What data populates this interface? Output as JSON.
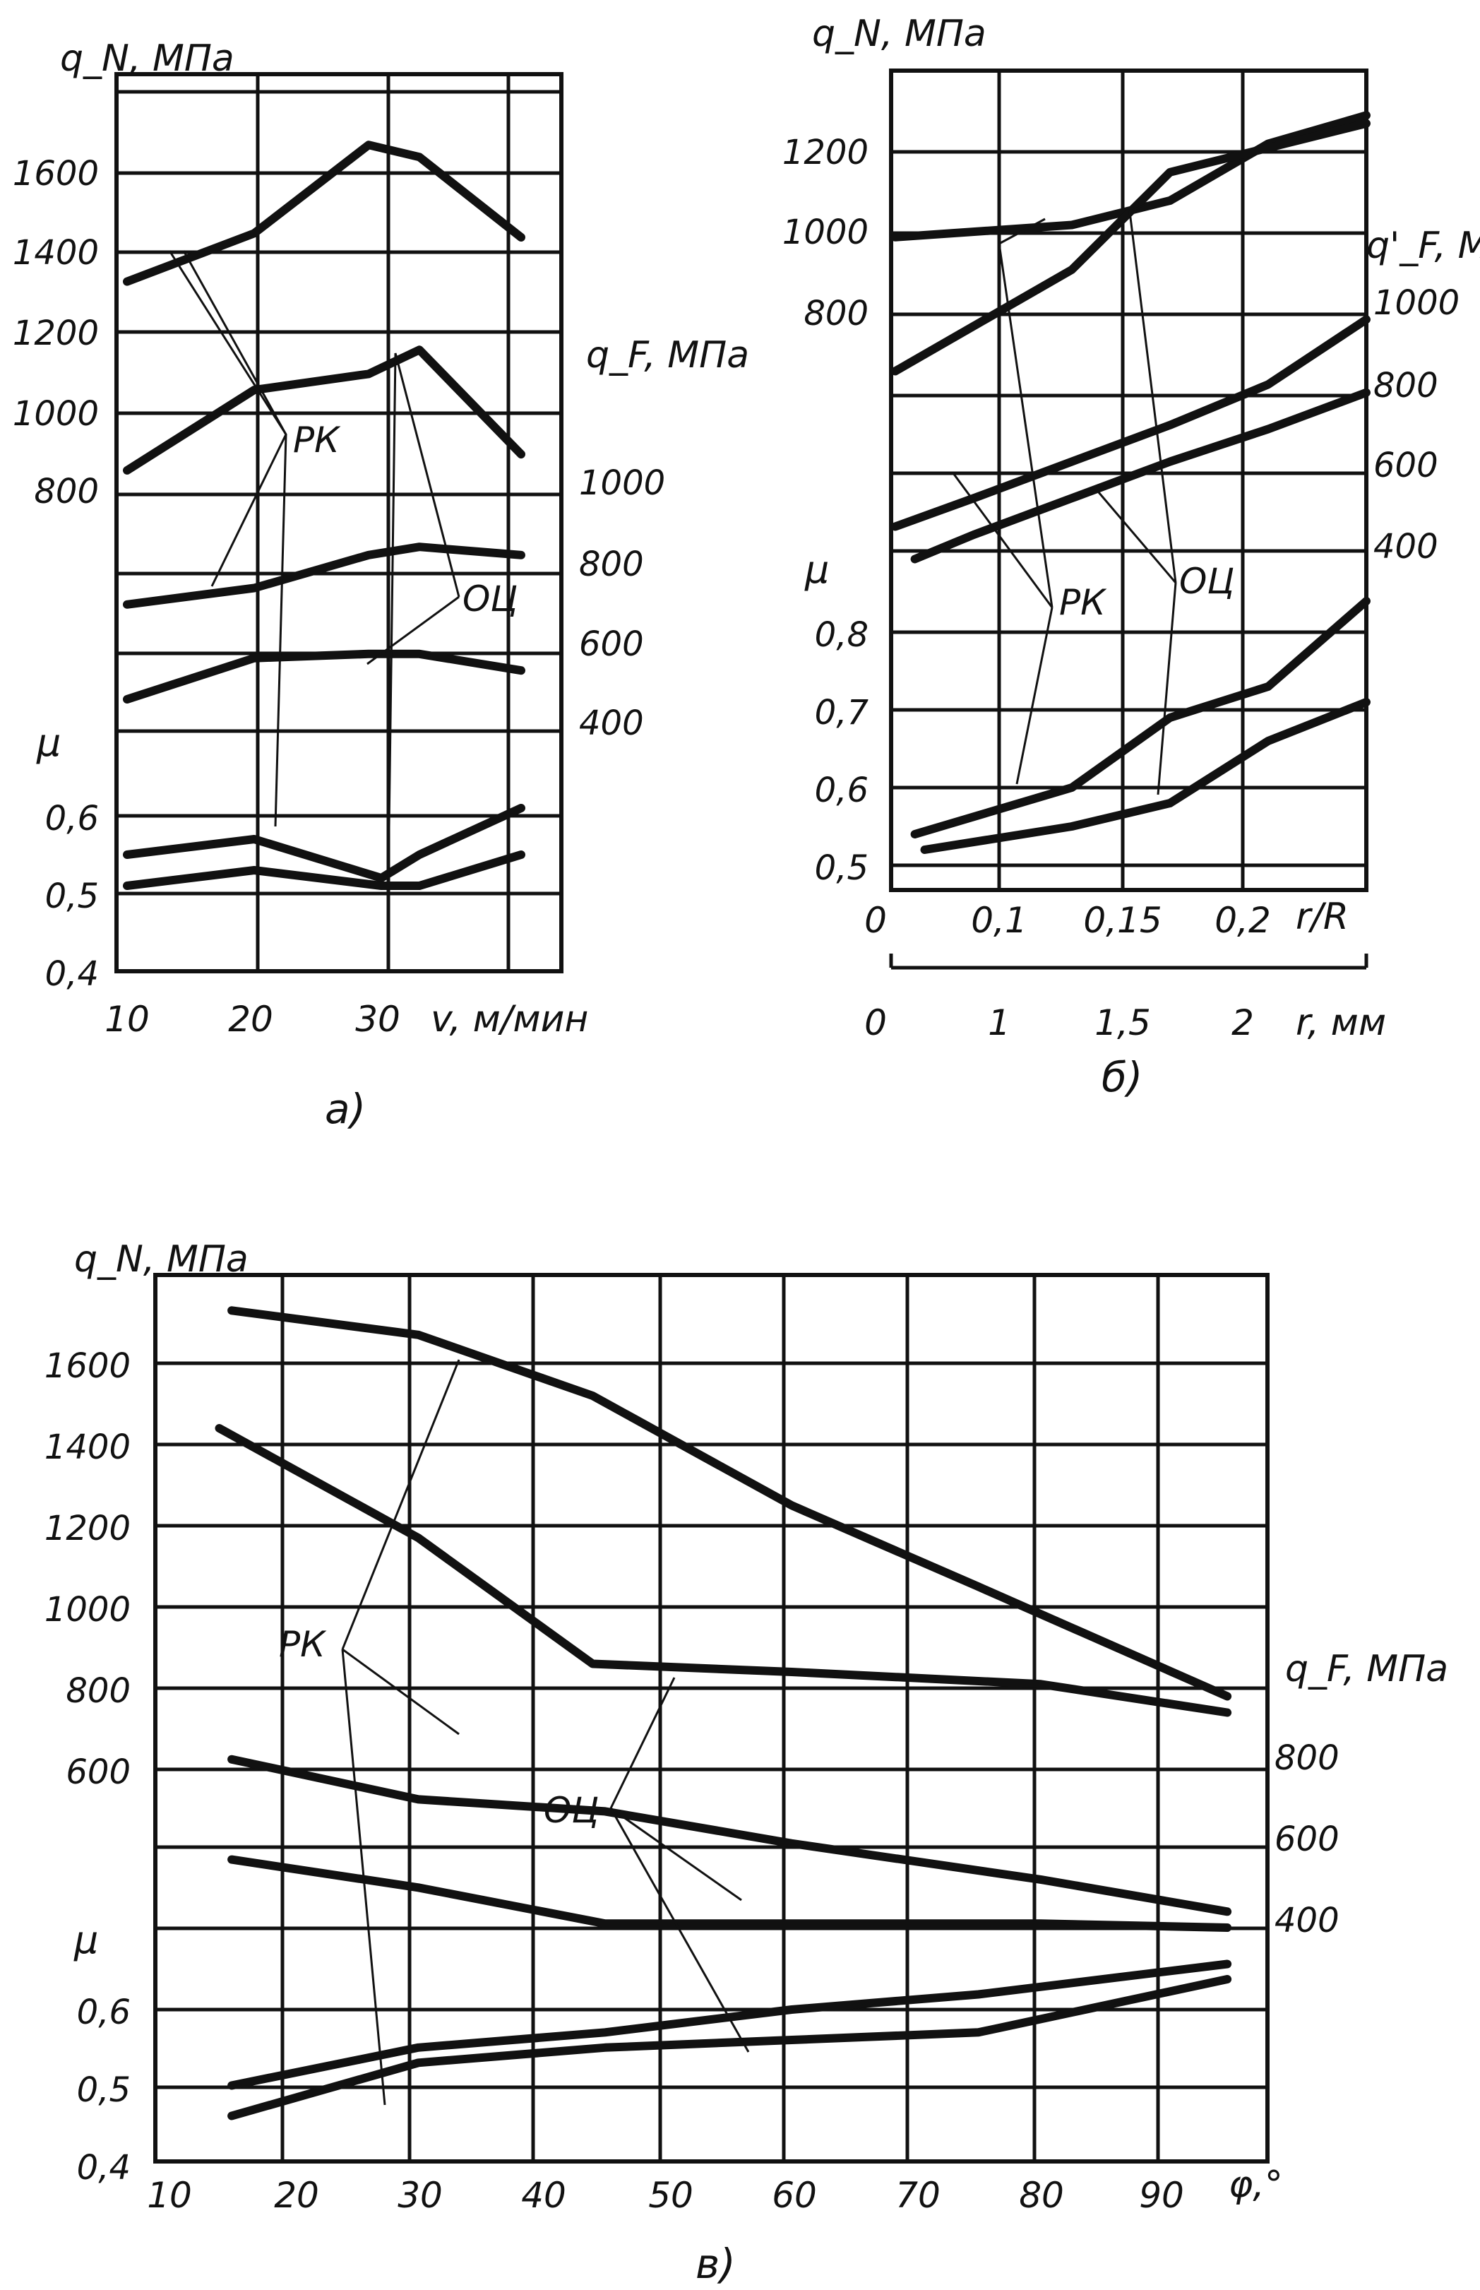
{
  "chart_data": [
    {
      "type": "line",
      "panel_label": "а)",
      "x_label": "v, м/мин",
      "x_ticks": [
        "10",
        "20",
        "30"
      ],
      "y_left_label": "q_N, МПа",
      "y_left_ticks": [
        "1600",
        "1400",
        "1200",
        "1000",
        "800"
      ],
      "y_right_label": "q_F, МПа",
      "y_right_ticks": [
        "1000",
        "800",
        "600",
        "400"
      ],
      "mu_label": "μ",
      "mu_ticks": [
        "0,6",
        "0,5",
        "0,4"
      ],
      "series": [
        {
          "name": "РК",
          "quantity": "q_N",
          "x": [
            10,
            20,
            29,
            33,
            41
          ],
          "y": [
            1330,
            1450,
            1670,
            1640,
            1440
          ]
        },
        {
          "name": "ОЦ",
          "quantity": "q_N",
          "x": [
            10,
            20,
            29,
            33,
            41
          ],
          "y": [
            860,
            1060,
            1100,
            1160,
            900
          ]
        },
        {
          "name": "РК",
          "quantity": "q_F",
          "x": [
            10,
            20,
            29,
            33,
            41
          ],
          "y": [
            690,
            730,
            810,
            830,
            810
          ]
        },
        {
          "name": "ОЦ",
          "quantity": "q_F",
          "x": [
            10,
            20,
            29,
            33,
            41
          ],
          "y": [
            460,
            560,
            570,
            570,
            530
          ]
        },
        {
          "name": "РК",
          "quantity": "μ",
          "x": [
            10,
            20,
            30,
            33,
            41
          ],
          "y": [
            0.55,
            0.57,
            0.52,
            0.55,
            0.61
          ]
        },
        {
          "name": "ОЦ",
          "quantity": "μ",
          "x": [
            10,
            20,
            30,
            33,
            41
          ],
          "y": [
            0.51,
            0.53,
            0.51,
            0.51,
            0.55
          ]
        }
      ]
    },
    {
      "type": "line",
      "panel_label": "б)",
      "x_label": "r/R",
      "x_ticks": [
        "0",
        "0,1",
        "0,15",
        "0,2"
      ],
      "x2_label": "r, мм",
      "x2_ticks": [
        "0",
        "1",
        "1,5",
        "2"
      ],
      "y_left_label": "q_N, МПа",
      "y_left_ticks": [
        "1200",
        "1000",
        "800"
      ],
      "y_right_label": "q'_F, МПа",
      "y_right_ticks": [
        "1000",
        "800",
        "600",
        "400"
      ],
      "mu_label": "μ",
      "mu_ticks": [
        "0,8",
        "0,7",
        "0,6",
        "0,5"
      ],
      "series": [
        {
          "name": "ОЦ",
          "quantity": "q_N",
          "x": [
            0.1,
            1,
            1.5,
            2,
            2.5
          ],
          "y": [
            990,
            1020,
            1080,
            1220,
            1290
          ]
        },
        {
          "name": "РК",
          "quantity": "q_N",
          "x": [
            0.1,
            1,
            1.5,
            2,
            2.5
          ],
          "y": [
            660,
            910,
            1150,
            1210,
            1270
          ]
        },
        {
          "name": "РК",
          "quantity": "q_F",
          "x": [
            0.1,
            0.5,
            1,
            1.5,
            2,
            2.5
          ],
          "y": [
            460,
            530,
            620,
            710,
            810,
            970
          ]
        },
        {
          "name": "ОЦ",
          "quantity": "q_F",
          "x": [
            0.2,
            0.5,
            1,
            1.5,
            2,
            2.5
          ],
          "y": [
            380,
            440,
            530,
            620,
            700,
            790
          ]
        },
        {
          "name": "РК",
          "quantity": "μ",
          "x": [
            0.2,
            1,
            1.5,
            2,
            2.5
          ],
          "y": [
            0.54,
            0.6,
            0.69,
            0.73,
            0.84
          ]
        },
        {
          "name": "ОЦ",
          "quantity": "μ",
          "x": [
            0.25,
            1,
            1.5,
            2,
            2.5
          ],
          "y": [
            0.52,
            0.55,
            0.58,
            0.66,
            0.71
          ]
        }
      ]
    },
    {
      "type": "line",
      "panel_label": "в)",
      "x_label": "φ,°",
      "x_ticks": [
        "10",
        "20",
        "30",
        "40",
        "50",
        "60",
        "70",
        "80",
        "90"
      ],
      "y_left_label": "q_N, МПа",
      "y_left_ticks": [
        "1600",
        "1400",
        "1200",
        "1000",
        "800",
        "600"
      ],
      "y_right_label": "q_F, МПа",
      "y_right_ticks": [
        "800",
        "600",
        "400"
      ],
      "mu_label": "μ",
      "mu_ticks": [
        "0,6",
        "0,5",
        "0,4"
      ],
      "series": [
        {
          "name": "РК",
          "quantity": "q_N",
          "x": [
            15,
            30,
            44,
            60,
            75,
            95
          ],
          "y": [
            1730,
            1670,
            1520,
            1250,
            1050,
            780
          ]
        },
        {
          "name": "ОЦ",
          "quantity": "q_N",
          "x": [
            14,
            30,
            44,
            60,
            80,
            95
          ],
          "y": [
            1440,
            1170,
            860,
            840,
            810,
            740
          ]
        },
        {
          "name": "РК",
          "quantity": "q_F",
          "x": [
            15,
            30,
            45,
            60,
            80,
            95
          ],
          "y": [
            790,
            690,
            660,
            580,
            490,
            410
          ]
        },
        {
          "name": "ОЦ",
          "quantity": "q_F",
          "x": [
            15,
            30,
            45,
            60,
            80,
            95
          ],
          "y": [
            540,
            470,
            380,
            380,
            380,
            370
          ]
        },
        {
          "name": "РК",
          "quantity": "μ",
          "x": [
            15,
            30,
            45,
            60,
            75,
            95
          ],
          "y": [
            0.5,
            0.55,
            0.57,
            0.6,
            0.62,
            0.66
          ]
        },
        {
          "name": "ОЦ",
          "quantity": "μ",
          "x": [
            15,
            30,
            45,
            60,
            75,
            95
          ],
          "y": [
            0.46,
            0.53,
            0.55,
            0.56,
            0.57,
            0.64
          ]
        }
      ]
    }
  ],
  "annotations": {
    "rk": "РК",
    "oc": "ОЦ"
  }
}
